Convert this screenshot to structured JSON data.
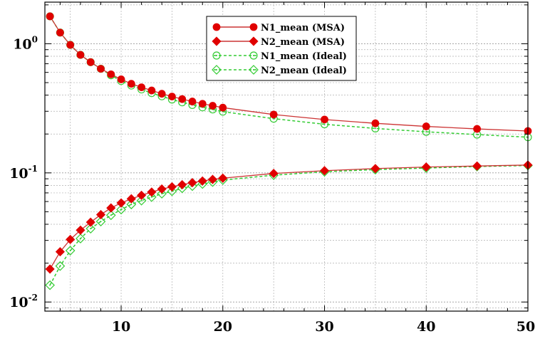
{
  "chart_data": {
    "type": "line",
    "title": "",
    "xlabel": "",
    "ylabel": "",
    "x_scale": "linear",
    "y_scale": "log",
    "xlim": [
      2.5,
      50
    ],
    "ylim": [
      0.0085,
      2.1
    ],
    "grid": true,
    "legend_position": "top-center",
    "x_ticks": [
      10,
      20,
      30,
      40,
      50
    ],
    "x_tick_labels": [
      "10",
      "20",
      "30",
      "40",
      "50"
    ],
    "y_ticks": [
      {
        "value": 1,
        "mantissa": "10",
        "exponent": "0"
      },
      {
        "value": 0.1,
        "mantissa": "10",
        "exponent": "-1"
      },
      {
        "value": 0.01,
        "mantissa": "10",
        "exponent": "-2"
      }
    ],
    "series": [
      {
        "name": "N1_mean (MSA)",
        "color": "#e00000",
        "line_color": "#cc3333",
        "marker": "circle",
        "filled": true,
        "dashed": false,
        "x": [
          3,
          4,
          5,
          6,
          7,
          8,
          9,
          10,
          11,
          12,
          13,
          14,
          15,
          16,
          17,
          18,
          19,
          20,
          25,
          30,
          35,
          40,
          45,
          50
        ],
        "y": [
          1.63,
          1.22,
          0.98,
          0.82,
          0.72,
          0.64,
          0.58,
          0.53,
          0.49,
          0.46,
          0.435,
          0.41,
          0.39,
          0.373,
          0.357,
          0.343,
          0.331,
          0.32,
          0.283,
          0.259,
          0.242,
          0.229,
          0.219,
          0.211
        ]
      },
      {
        "name": "N2_mean (MSA)",
        "color": "#e00000",
        "line_color": "#cc3333",
        "marker": "diamond",
        "filled": true,
        "dashed": false,
        "x": [
          3,
          4,
          5,
          6,
          7,
          8,
          9,
          10,
          11,
          12,
          13,
          14,
          15,
          16,
          17,
          18,
          19,
          20,
          25,
          30,
          35,
          40,
          45,
          50
        ],
        "y": [
          0.018,
          0.0245,
          0.0305,
          0.036,
          0.0415,
          0.0475,
          0.0535,
          0.0585,
          0.063,
          0.067,
          0.071,
          0.075,
          0.078,
          0.081,
          0.084,
          0.0865,
          0.089,
          0.091,
          0.099,
          0.104,
          0.108,
          0.111,
          0.113,
          0.115
        ]
      },
      {
        "name": "N1_mean (Ideal)",
        "color": "#33cc33",
        "line_color": "#33cc33",
        "marker": "circle",
        "filled": false,
        "dashed": true,
        "x": [
          3,
          4,
          5,
          6,
          7,
          8,
          9,
          10,
          11,
          12,
          13,
          14,
          15,
          16,
          17,
          18,
          19,
          20,
          25,
          30,
          35,
          40,
          45,
          50
        ],
        "y": [
          1.63,
          1.22,
          0.98,
          0.82,
          0.72,
          0.64,
          0.57,
          0.515,
          0.475,
          0.443,
          0.415,
          0.392,
          0.37,
          0.352,
          0.336,
          0.322,
          0.31,
          0.298,
          0.263,
          0.238,
          0.221,
          0.208,
          0.198,
          0.189
        ]
      },
      {
        "name": "N2_mean (Ideal)",
        "color": "#33cc33",
        "line_color": "#33cc33",
        "marker": "diamond",
        "filled": false,
        "dashed": true,
        "x": [
          3,
          4,
          5,
          6,
          7,
          8,
          9,
          10,
          11,
          12,
          13,
          14,
          15,
          16,
          17,
          18,
          19,
          20,
          25,
          30,
          35,
          40,
          45,
          50
        ],
        "y": [
          0.0135,
          0.019,
          0.025,
          0.031,
          0.037,
          0.042,
          0.047,
          0.052,
          0.057,
          0.061,
          0.065,
          0.069,
          0.072,
          0.076,
          0.079,
          0.082,
          0.085,
          0.088,
          0.096,
          0.102,
          0.106,
          0.109,
          0.112,
          0.114
        ]
      }
    ]
  }
}
